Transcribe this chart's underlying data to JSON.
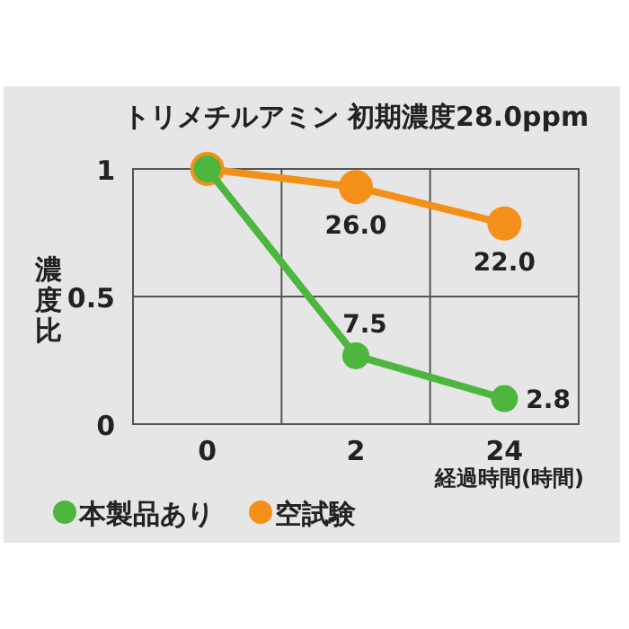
{
  "chart_data": {
    "type": "line",
    "title": "トリメチルアミン 初期濃度28.0ppm",
    "ylabel": "濃度比",
    "xlabel": "経過時間(時間)",
    "categories": [
      "0",
      "2",
      "24"
    ],
    "ylim": [
      0,
      1
    ],
    "yticks": [
      0,
      0.5,
      1
    ],
    "grid": true,
    "legend": "bottom",
    "marker": "circle",
    "line_style": "solid",
    "series": [
      {
        "name": "本製品あり",
        "color": "#4cb63e",
        "values": [
          1,
          0.268,
          0.1
        ]
      },
      {
        "name": "空試験",
        "color": "#f39019",
        "values": [
          1,
          0.929,
          0.786
        ]
      }
    ],
    "annotations": [
      {
        "text": "7.5",
        "x": "2",
        "y": 0.268
      },
      {
        "text": "2.8",
        "x": "24",
        "y": 0.1
      },
      {
        "text": "26.0",
        "x": "2",
        "y": 0.929
      },
      {
        "text": "22.0",
        "x": "24",
        "y": 0.786
      }
    ]
  }
}
